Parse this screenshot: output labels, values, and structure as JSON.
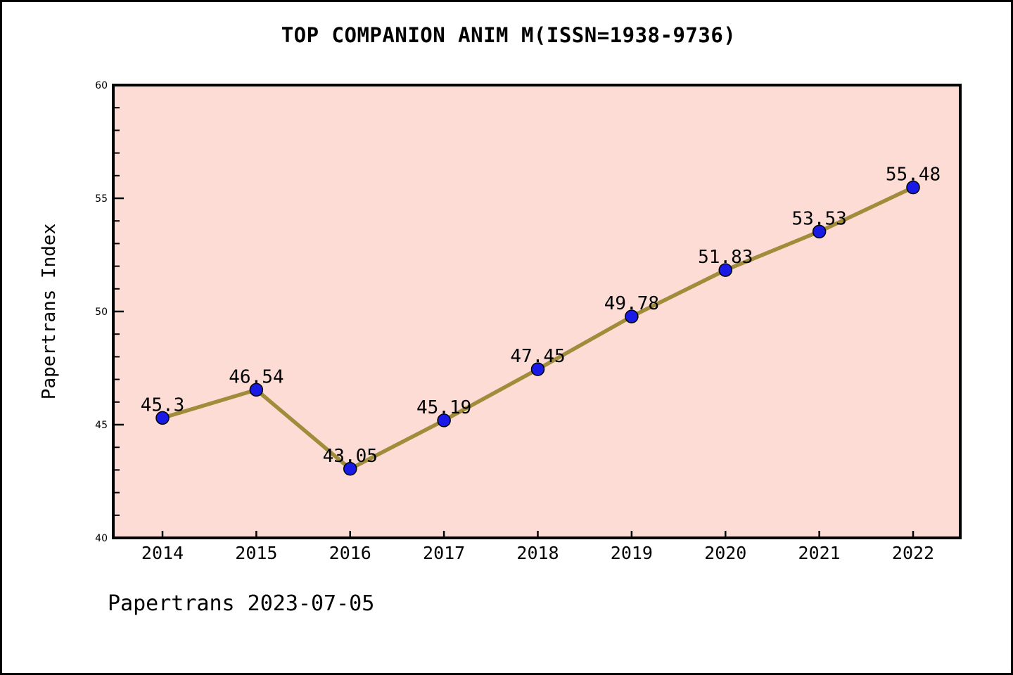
{
  "title": "TOP COMPANION ANIM M(ISSN=1938-9736)",
  "footer": "Papertrans 2023-07-05",
  "chart_data": {
    "type": "line",
    "title": "TOP COMPANION ANIM M(ISSN=1938-9736)",
    "xlabel": "",
    "ylabel": "Papertrans Index",
    "categories": [
      2014,
      2015,
      2016,
      2017,
      2018,
      2019,
      2020,
      2021,
      2022
    ],
    "series": [
      {
        "name": "Papertrans Index",
        "values": [
          45.3,
          46.54,
          43.05,
          45.19,
          47.45,
          49.78,
          51.83,
          53.53,
          55.48
        ]
      }
    ],
    "ylim": [
      40,
      60
    ],
    "yticks": [
      40,
      45,
      50,
      55,
      60
    ],
    "y_minor_step": 1,
    "grid": false,
    "legend": "none",
    "annotation": "Papertrans 2023-07-05",
    "colors": {
      "plot_background": "#fcdcd5",
      "line": "#a18c3b",
      "marker_fill": "#1a1ae6",
      "marker_edge": "#000000",
      "axis": "#000000",
      "text": "#000000"
    }
  }
}
